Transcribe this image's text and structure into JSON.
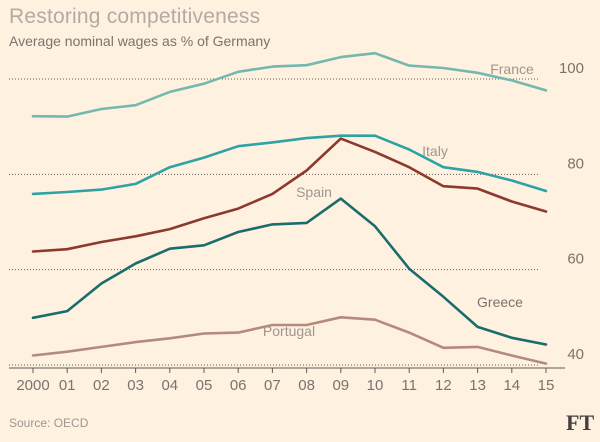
{
  "chart_data": {
    "type": "line",
    "title": "Restoring competitiveness",
    "subtitle": "Average nominal wages as % of Germany",
    "source": "Source: OECD",
    "brand": "FT",
    "x_tick_labels": [
      "2000",
      "01",
      "02",
      "03",
      "04",
      "05",
      "06",
      "07",
      "08",
      "09",
      "10",
      "11",
      "12",
      "13",
      "14",
      "15"
    ],
    "x": [
      2000,
      2001,
      2002,
      2003,
      2004,
      2005,
      2006,
      2007,
      2008,
      2009,
      2010,
      2011,
      2012,
      2013,
      2014,
      2015
    ],
    "y_ticks": [
      40,
      60,
      80,
      100
    ],
    "ylim": [
      37,
      106
    ],
    "grid": "dotted horizontal at y ticks",
    "series": [
      {
        "name": "France",
        "color": "#74b8ae",
        "label_color": "#9e9690",
        "values": [
          92.2,
          92.1,
          93.7,
          94.5,
          97.3,
          99.0,
          101.5,
          102.6,
          102.9,
          104.6,
          105.4,
          102.8,
          102.3,
          101.3,
          99.7,
          97.6
        ]
      },
      {
        "name": "Italy",
        "color": "#2fa2a3",
        "label_color": "#9e9690",
        "values": [
          75.9,
          76.3,
          76.8,
          78.0,
          81.5,
          83.5,
          85.9,
          86.7,
          87.6,
          88.1,
          88.1,
          85.2,
          81.5,
          80.5,
          78.7,
          76.5
        ]
      },
      {
        "name": "Spain",
        "color": "#8b3a2c",
        "label_color": "#9e9690",
        "values": [
          63.8,
          64.3,
          65.8,
          67.0,
          68.5,
          70.8,
          72.8,
          75.9,
          80.8,
          87.5,
          84.7,
          81.5,
          77.5,
          77.0,
          74.3,
          72.2
        ]
      },
      {
        "name": "Greece",
        "color": "#1b6c6d",
        "label_color": "#7a736d",
        "values": [
          49.9,
          51.3,
          57.1,
          61.3,
          64.4,
          65.1,
          67.9,
          69.5,
          69.8,
          74.9,
          69.1,
          60.2,
          54.3,
          48.0,
          45.7,
          44.3
        ]
      },
      {
        "name": "Portugal",
        "color": "#b48a80",
        "label_color": "#9e9690",
        "values": [
          42.0,
          42.8,
          43.8,
          44.8,
          45.6,
          46.6,
          46.8,
          48.4,
          48.4,
          50.0,
          49.5,
          46.8,
          43.6,
          43.8,
          42.0,
          40.3
        ]
      }
    ]
  }
}
